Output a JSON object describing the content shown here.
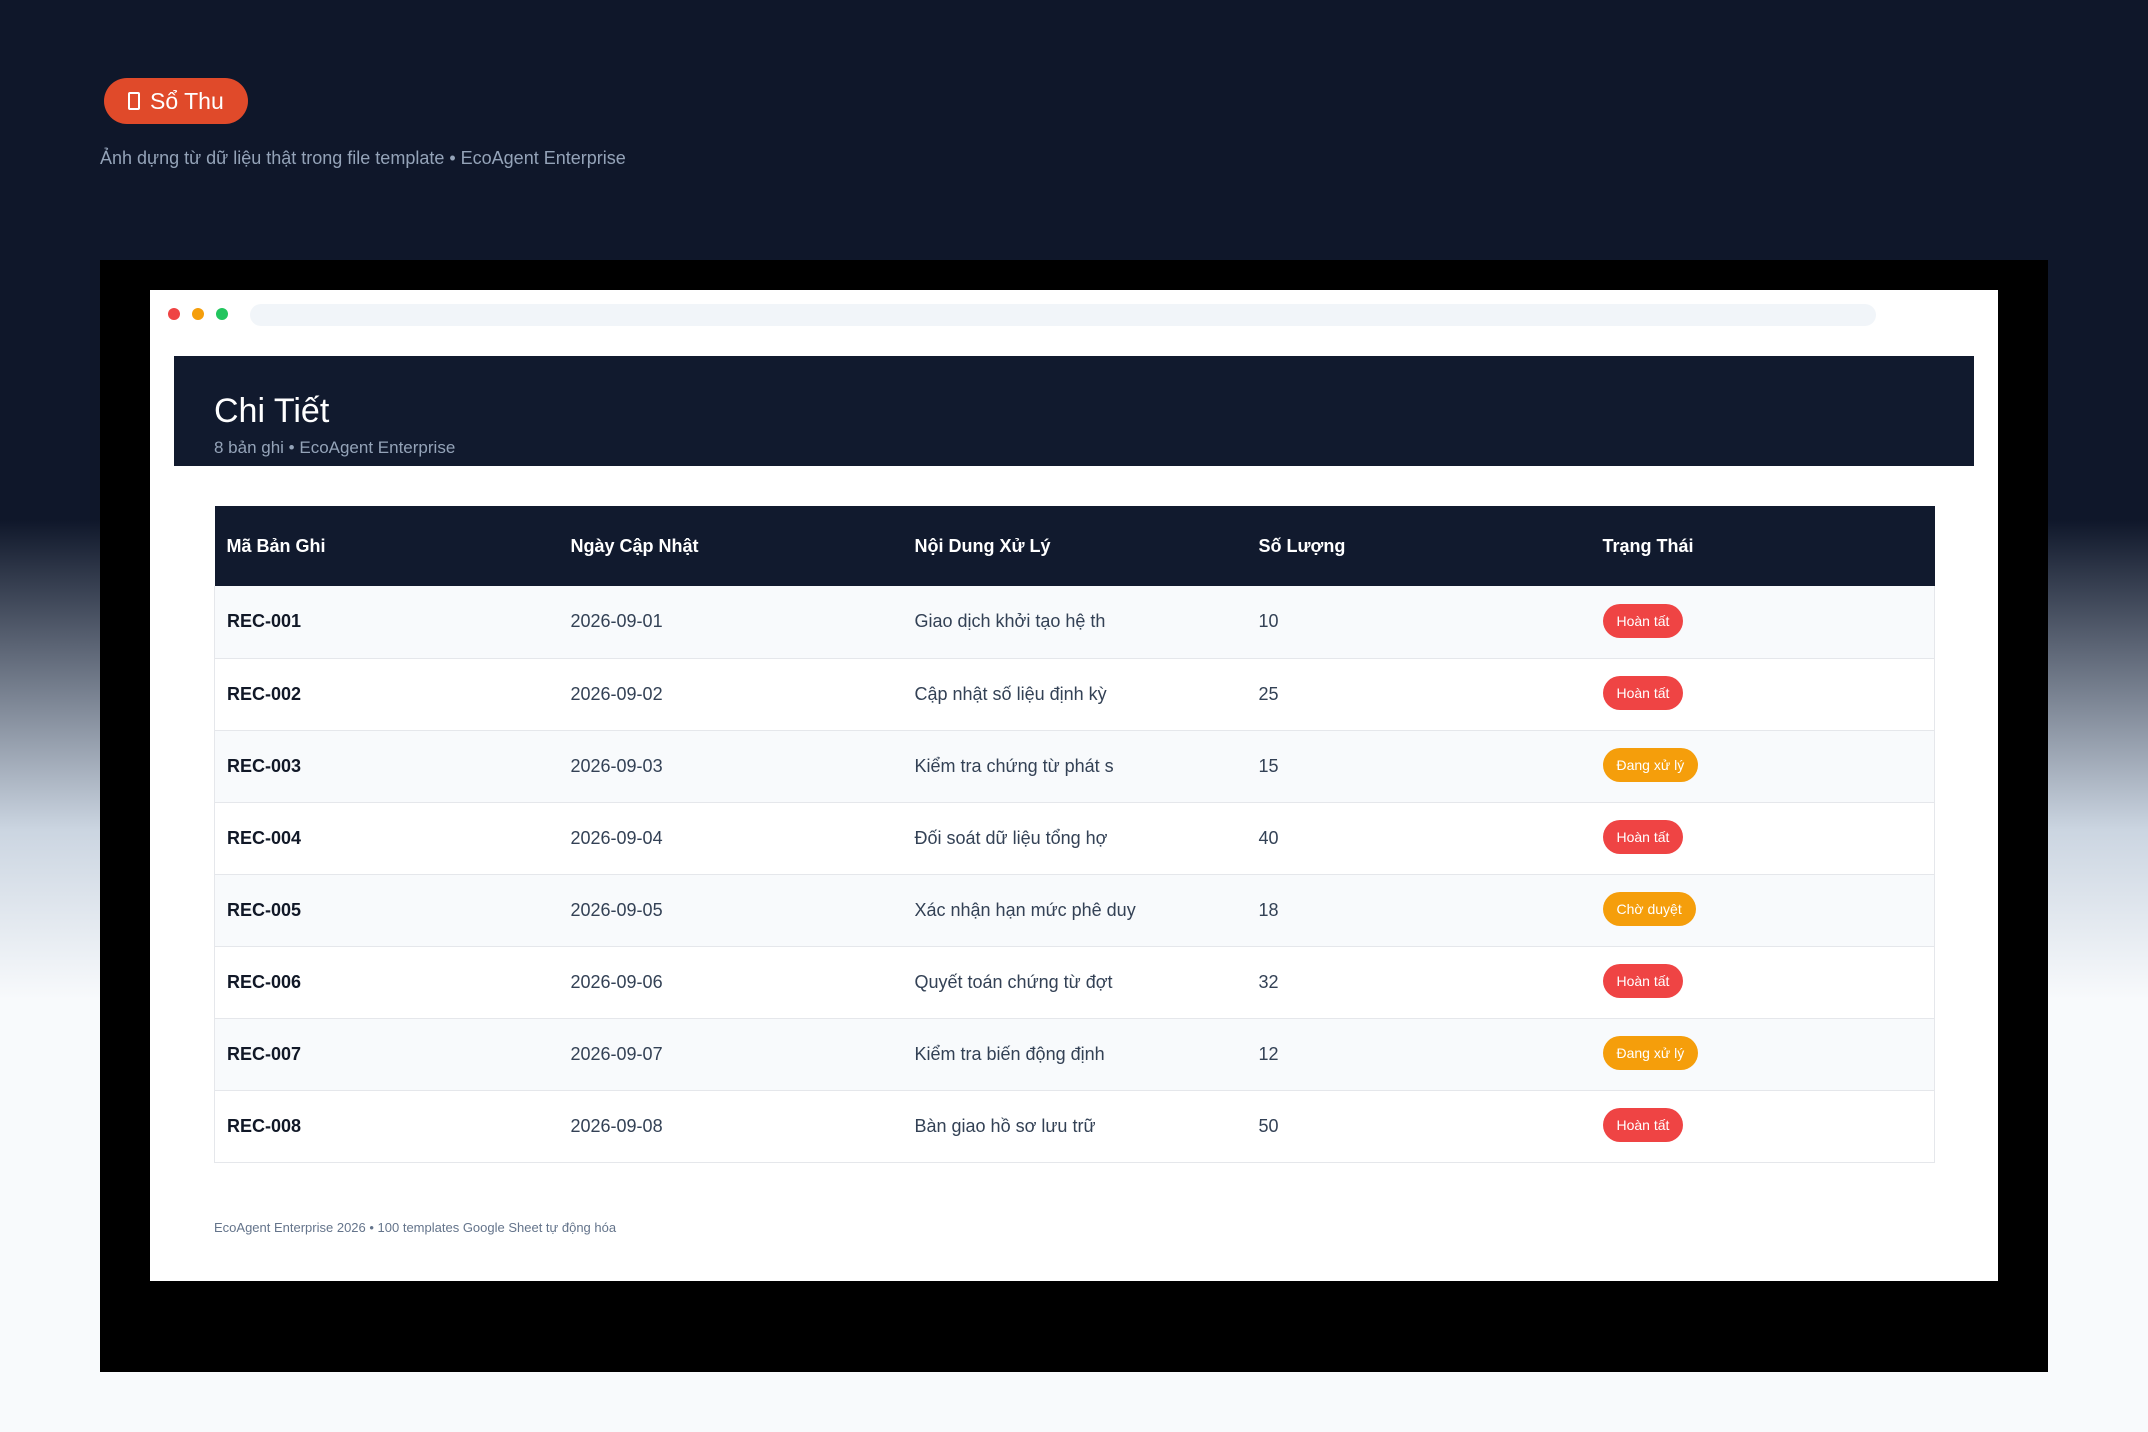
{
  "top_badge": {
    "label": "Sổ Thu",
    "icon": "document-icon",
    "color": "#e04a2a"
  },
  "top_subtitle": "Ảnh dựng từ dữ liệu thật trong file template • EcoAgent Enterprise",
  "header": {
    "title": "Chi Tiết",
    "meta": "8 bản ghi • EcoAgent Enterprise"
  },
  "table": {
    "columns": [
      "Mã Bản Ghi",
      "Ngày Cập Nhật",
      "Nội Dung Xử Lý",
      "Số Lượng",
      "Trạng Thái"
    ],
    "rows": [
      {
        "code": "REC-001",
        "date": "2026-09-01",
        "content": "Giao dịch khởi tạo hệ th",
        "qty": "10",
        "status": "Hoàn tất",
        "status_color": "#ef4444"
      },
      {
        "code": "REC-002",
        "date": "2026-09-02",
        "content": "Cập nhật số liệu định kỳ",
        "qty": "25",
        "status": "Hoàn tất",
        "status_color": "#ef4444"
      },
      {
        "code": "REC-003",
        "date": "2026-09-03",
        "content": "Kiểm tra chứng từ phát s",
        "qty": "15",
        "status": "Đang xử lý",
        "status_color": "#f59e0b"
      },
      {
        "code": "REC-004",
        "date": "2026-09-04",
        "content": "Đối soát dữ liệu tổng hợ",
        "qty": "40",
        "status": "Hoàn tất",
        "status_color": "#ef4444"
      },
      {
        "code": "REC-005",
        "date": "2026-09-05",
        "content": "Xác nhận hạn mức phê duy",
        "qty": "18",
        "status": "Chờ duyệt",
        "status_color": "#f59e0b"
      },
      {
        "code": "REC-006",
        "date": "2026-09-06",
        "content": "Quyết toán chứng từ đợt",
        "qty": "32",
        "status": "Hoàn tất",
        "status_color": "#ef4444"
      },
      {
        "code": "REC-007",
        "date": "2026-09-07",
        "content": "Kiểm tra biến động định",
        "qty": "12",
        "status": "Đang xử lý",
        "status_color": "#f59e0b"
      },
      {
        "code": "REC-008",
        "date": "2026-09-08",
        "content": "Bàn giao hồ sơ lưu trữ",
        "qty": "50",
        "status": "Hoàn tất",
        "status_color": "#ef4444"
      }
    ]
  },
  "footer": "EcoAgent Enterprise 2026 • 100 templates Google Sheet tự động hóa"
}
